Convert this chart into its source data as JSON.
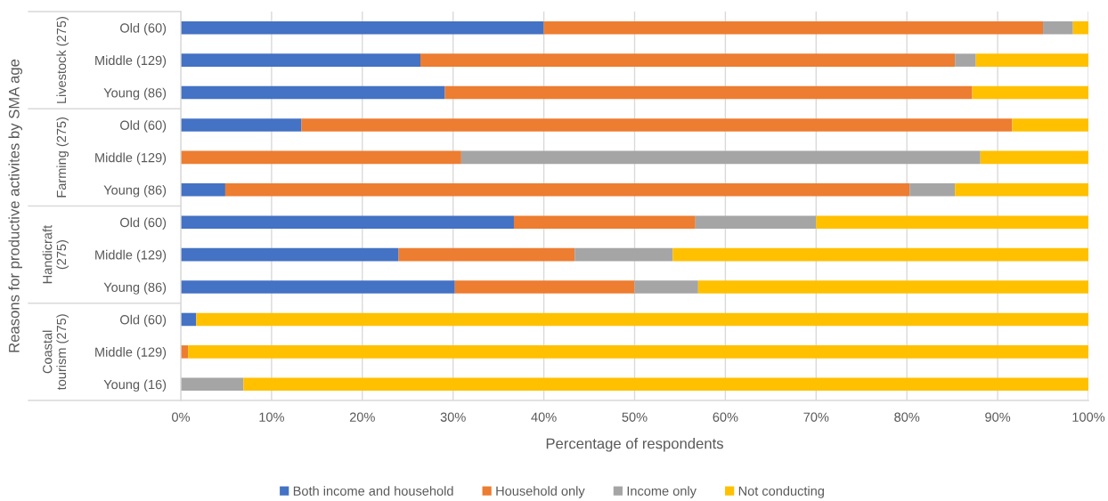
{
  "chart_data": {
    "type": "bar",
    "orientation": "horizontal",
    "stacked": true,
    "xlabel": "Percentage of respondents",
    "ylabel": "Reasons for productive activites by SMA age",
    "categories": [
      "Old (60)",
      "Middle (129)",
      "Young (86)",
      "Old (60)",
      "Middle (129)",
      "Young (86)",
      "Old (60)",
      "Middle (129)",
      "Young (86)",
      "Old (60)",
      "Middle (129)",
      "Young (16)"
    ],
    "annotations": [
      "Livestock (275)",
      "Farming (275)",
      "Handicraft (275)",
      "Coastal tourism (275)"
    ],
    "series": [
      {
        "name": "Both income and household",
        "color": "#4472c4",
        "values": [
          40.0,
          26.4,
          29.1,
          13.3,
          null,
          4.9,
          36.7,
          24.0,
          30.2,
          1.7,
          null,
          null
        ]
      },
      {
        "name": "Household only",
        "color": "#ed7d31",
        "values": [
          55.0,
          58.9,
          58.1,
          78.3,
          30.9,
          75.4,
          20.0,
          19.4,
          19.8,
          null,
          0.8,
          null
        ]
      },
      {
        "name": "Income only",
        "color": "#a5a5a5",
        "values": [
          3.3,
          2.3,
          null,
          null,
          57.2,
          5.0,
          13.3,
          10.8,
          7.0,
          null,
          null,
          6.9
        ]
      },
      {
        "name": "Not conducting",
        "color": "#ffc000",
        "values": [
          1.7,
          12.4,
          12.8,
          8.4,
          11.9,
          14.7,
          30.0,
          45.8,
          43.0,
          98.3,
          99.2,
          93.1
        ]
      }
    ],
    "xlim": [
      0,
      100
    ],
    "xticks": [
      {
        "value": 0,
        "label": "0%"
      },
      {
        "value": 10,
        "label": "10%"
      },
      {
        "value": 20,
        "label": "20%"
      },
      {
        "value": 30,
        "label": "30%"
      },
      {
        "value": 40,
        "label": "40%"
      },
      {
        "value": 50,
        "label": "50%"
      },
      {
        "value": 60,
        "label": "60%"
      },
      {
        "value": 70,
        "label": "70%"
      },
      {
        "value": 80,
        "label": "80%"
      },
      {
        "value": 90,
        "label": "90%"
      },
      {
        "value": 100,
        "label": "100%"
      }
    ],
    "grid": "x",
    "legend": "bottom"
  }
}
